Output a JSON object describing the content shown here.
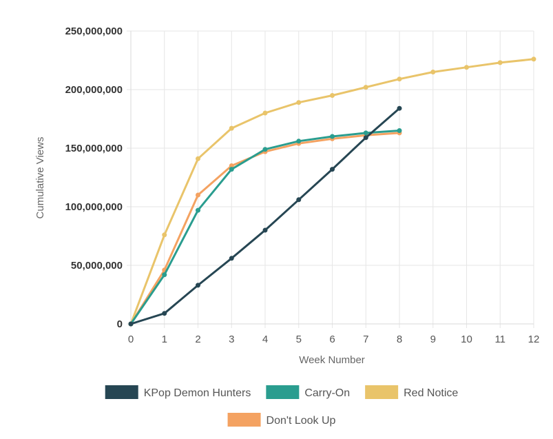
{
  "chart_data": {
    "type": "line",
    "title": "",
    "xlabel": "Week Number",
    "ylabel": "Cumulative Views",
    "xlim": [
      0,
      12
    ],
    "ylim": [
      0,
      250000000
    ],
    "x_ticks": [
      "0",
      "1",
      "2",
      "3",
      "4",
      "5",
      "6",
      "7",
      "8",
      "9",
      "10",
      "11",
      "12"
    ],
    "y_ticks": [
      "0",
      "50,000,000",
      "100,000,000",
      "150,000,000",
      "200,000,000",
      "250,000,000"
    ],
    "grid": true,
    "legend_position": "bottom",
    "series": [
      {
        "name": "KPop Demon Hunters",
        "color": "#264653",
        "x": [
          0,
          1,
          2,
          3,
          4,
          5,
          6,
          7,
          8
        ],
        "values": [
          0,
          9000000,
          33000000,
          56000000,
          80000000,
          106000000,
          132000000,
          159000000,
          184000000
        ]
      },
      {
        "name": "Carry-On",
        "color": "#2a9d8f",
        "x": [
          0,
          1,
          2,
          3,
          4,
          5,
          6,
          7,
          8
        ],
        "values": [
          0,
          42000000,
          97000000,
          132000000,
          149000000,
          156000000,
          160000000,
          163000000,
          165000000
        ]
      },
      {
        "name": "Red Notice",
        "color": "#e9c46a",
        "x": [
          0,
          1,
          2,
          3,
          4,
          5,
          6,
          7,
          8,
          9,
          10,
          11,
          12
        ],
        "values": [
          0,
          76000000,
          141000000,
          167000000,
          180000000,
          189000000,
          195000000,
          202000000,
          209000000,
          215000000,
          219000000,
          223000000,
          226000000
        ]
      },
      {
        "name": "Don't Look Up",
        "color": "#f4a261",
        "x": [
          0,
          1,
          2,
          3,
          4,
          5,
          6,
          7,
          8
        ],
        "values": [
          0,
          46000000,
          110000000,
          135000000,
          147000000,
          154000000,
          158000000,
          161000000,
          163000000
        ]
      }
    ]
  }
}
